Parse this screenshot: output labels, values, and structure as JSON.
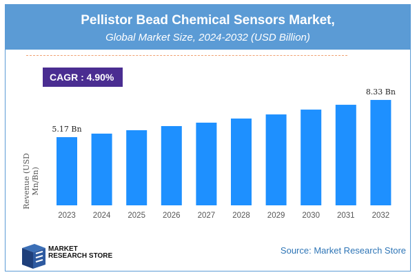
{
  "header": {
    "title": "Pellistor Bead Chemical Sensors Market,",
    "subtitle": "Global Market Size, 2024-2032 (USD Billion)"
  },
  "cagr": "CAGR :  4.90%",
  "chart_data": {
    "type": "bar",
    "title": "Pellistor Bead Chemical Sensors Market, Global Market Size, 2024-2032 (USD Billion)",
    "ylabel": "Revenue (USD Mn/Bn)",
    "xlabel": "",
    "categories": [
      "2023",
      "2024",
      "2025",
      "2026",
      "2027",
      "2028",
      "2029",
      "2030",
      "2031",
      "2032"
    ],
    "values": [
      5.17,
      5.47,
      5.76,
      6.11,
      6.4,
      6.75,
      7.1,
      7.51,
      7.92,
      8.33
    ],
    "data_labels": {
      "0": "5.17 Bn",
      "9": "8.33 Bn"
    },
    "color": "#1e90ff",
    "grid": false
  },
  "footer": {
    "logo_line1": "MARKET",
    "logo_line2": "RESEARCH STORE",
    "source": "Source: Market Research Store"
  }
}
